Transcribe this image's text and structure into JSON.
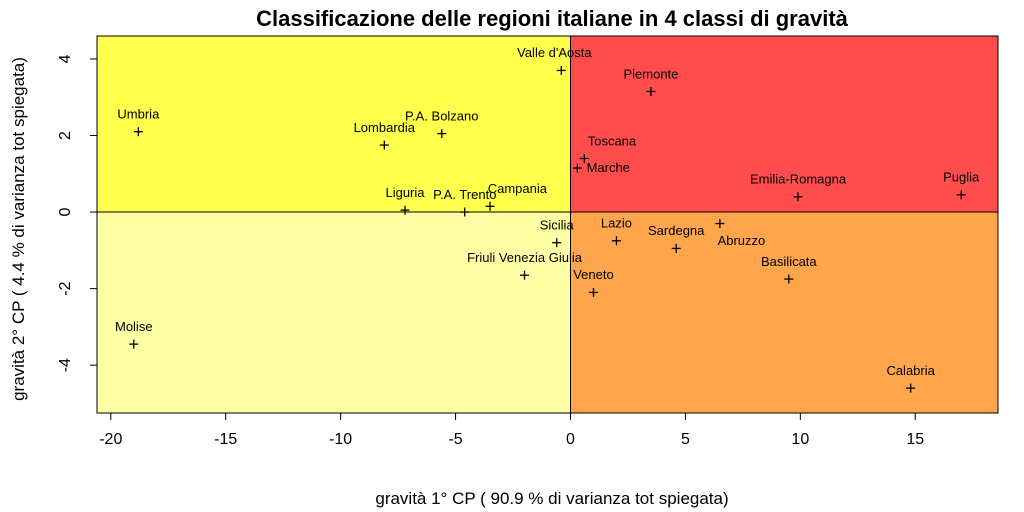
{
  "chart_data": {
    "type": "scatter",
    "title": "Classificazione delle regioni italiane in 4 classi di gravità",
    "xlabel": "gravità 1° CP  ( 90.9 % di varianza tot spiegata)",
    "ylabel": "gravità 2° CP  ( 4.4 % di varianza tot spiegata)",
    "xlim": [
      -20.6,
      18.6
    ],
    "ylim": [
      -5.25,
      4.6
    ],
    "xticks": [
      -20,
      -15,
      -10,
      -5,
      0,
      5,
      10,
      15
    ],
    "xtick_labels": [
      "-20",
      "-15",
      "-10",
      "-5",
      "0",
      "5",
      "10",
      "15"
    ],
    "yticks": [
      -4,
      -2,
      0,
      2,
      4
    ],
    "ytick_labels": [
      "-4",
      "-2",
      "0",
      "2",
      "4"
    ],
    "grid": false,
    "legend": "none",
    "quadrants": [
      {
        "x": [
          -20.6,
          0
        ],
        "y": [
          0,
          4.6
        ],
        "color": "#ffff4d"
      },
      {
        "x": [
          0,
          18.6
        ],
        "y": [
          0,
          4.6
        ],
        "color": "#ff4d4d"
      },
      {
        "x": [
          -20.6,
          0
        ],
        "y": [
          -5.25,
          0
        ],
        "color": "#ffffa6"
      },
      {
        "x": [
          0,
          18.6
        ],
        "y": [
          -5.25,
          0
        ],
        "color": "#ffa64d"
      }
    ],
    "points": [
      {
        "label": "Valle d'Aosta",
        "x": -0.4,
        "y": 3.7,
        "lx": -0.7,
        "ly": 4.15,
        "anchor": "middle"
      },
      {
        "label": "Piemonte",
        "x": 3.5,
        "y": 3.15,
        "lx": 3.5,
        "ly": 3.6,
        "anchor": "middle"
      },
      {
        "label": "Umbria",
        "x": -18.8,
        "y": 2.1,
        "lx": -18.8,
        "ly": 2.55,
        "anchor": "middle"
      },
      {
        "label": "P.A. Bolzano",
        "x": -5.6,
        "y": 2.05,
        "lx": -5.6,
        "ly": 2.5,
        "anchor": "middle"
      },
      {
        "label": "Lombardia",
        "x": -8.1,
        "y": 1.75,
        "lx": -8.1,
        "ly": 2.2,
        "anchor": "middle"
      },
      {
        "label": "Toscana",
        "x": 0.6,
        "y": 1.4,
        "lx": 0.75,
        "ly": 1.85,
        "anchor": "start"
      },
      {
        "label": "Marche",
        "x": 0.3,
        "y": 1.15,
        "lx": 0.7,
        "ly": 1.15,
        "anchor": "start"
      },
      {
        "label": "Emilia-Romagna",
        "x": 9.9,
        "y": 0.4,
        "lx": 9.9,
        "ly": 0.85,
        "anchor": "middle"
      },
      {
        "label": "Puglia",
        "x": 17.0,
        "y": 0.45,
        "lx": 17.0,
        "ly": 0.9,
        "anchor": "middle"
      },
      {
        "label": "Campania",
        "x": -3.5,
        "y": 0.15,
        "lx": -3.6,
        "ly": 0.6,
        "anchor": "start"
      },
      {
        "label": "Liguria",
        "x": -7.2,
        "y": 0.05,
        "lx": -7.2,
        "ly": 0.5,
        "anchor": "middle"
      },
      {
        "label": "P.A. Trento",
        "x": -4.6,
        "y": 0.0,
        "lx": -4.6,
        "ly": 0.45,
        "anchor": "middle"
      },
      {
        "label": "Sicilia",
        "x": -0.6,
        "y": -0.8,
        "lx": -0.6,
        "ly": -0.35,
        "anchor": "middle"
      },
      {
        "label": "Lazio",
        "x": 2.0,
        "y": -0.75,
        "lx": 2.0,
        "ly": -0.3,
        "anchor": "middle"
      },
      {
        "label": "Sardegna",
        "x": 4.6,
        "y": -0.95,
        "lx": 4.6,
        "ly": -0.5,
        "anchor": "middle"
      },
      {
        "label": "Abruzzo",
        "x": 6.5,
        "y": -0.3,
        "lx": 6.4,
        "ly": -0.75,
        "anchor": "start"
      },
      {
        "label": "Friuli Venezia Giulia",
        "x": -2.0,
        "y": -1.65,
        "lx": -2.0,
        "ly": -1.2,
        "anchor": "middle"
      },
      {
        "label": "Veneto",
        "x": 1.0,
        "y": -2.1,
        "lx": 1.0,
        "ly": -1.65,
        "anchor": "middle"
      },
      {
        "label": "Basilicata",
        "x": 9.5,
        "y": -1.75,
        "lx": 9.5,
        "ly": -1.3,
        "anchor": "middle"
      },
      {
        "label": "Molise",
        "x": -19.0,
        "y": -3.45,
        "lx": -19.0,
        "ly": -3.0,
        "anchor": "middle"
      },
      {
        "label": "Calabria",
        "x": 14.8,
        "y": -4.6,
        "lx": 14.8,
        "ly": -4.15,
        "anchor": "middle"
      }
    ]
  }
}
